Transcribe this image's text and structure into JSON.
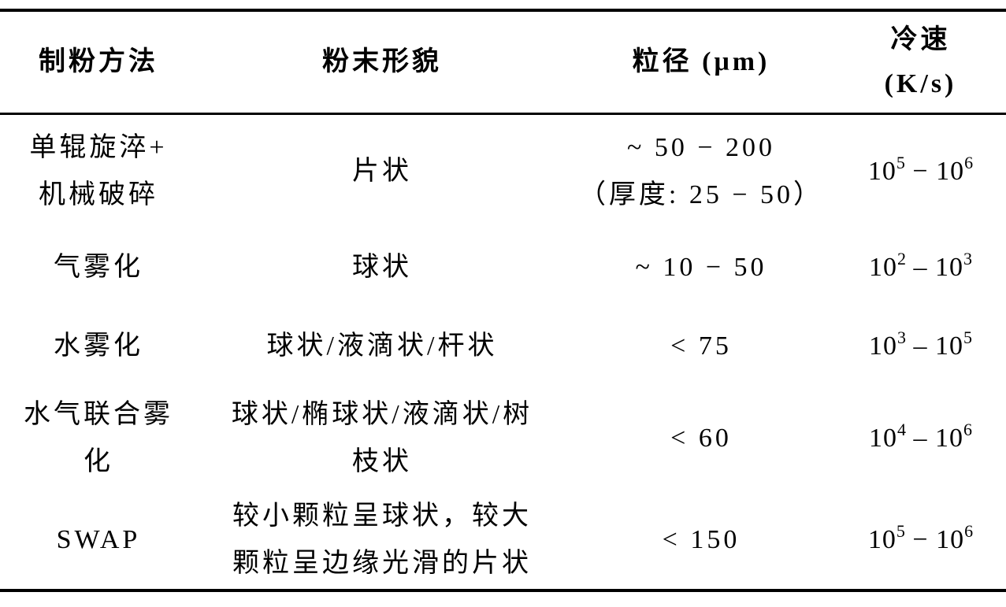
{
  "headers": [
    [
      "制粉方法"
    ],
    [
      "粉末形貌"
    ],
    [
      "粒径 (μm)"
    ],
    [
      "冷速",
      "(K/s)"
    ]
  ],
  "rows": [
    {
      "method": [
        "单辊旋淬+",
        "机械破碎"
      ],
      "morphology": [
        "片状"
      ],
      "size": [
        "~ 50 − 200",
        "（厚度: 25 − 50）"
      ],
      "rate": {
        "a": "10",
        "ae": "5",
        "sep": " − ",
        "b": "10",
        "be": "6"
      }
    },
    {
      "method": [
        "气雾化"
      ],
      "morphology": [
        "球状"
      ],
      "size": [
        "~ 10 − 50"
      ],
      "rate": {
        "a": "10",
        "ae": "2",
        "sep": " – ",
        "b": "10",
        "be": "3"
      }
    },
    {
      "method": [
        "水雾化"
      ],
      "morphology": [
        "球状/液滴状/杆状"
      ],
      "size": [
        "< 75"
      ],
      "rate": {
        "a": "10",
        "ae": "3",
        "sep": " – ",
        "b": "10",
        "be": "5"
      }
    },
    {
      "method": [
        "水气联合雾",
        "化"
      ],
      "morphology": [
        "球状/椭球状/液滴状/树",
        "枝状"
      ],
      "size": [
        "< 60"
      ],
      "rate": {
        "a": "10",
        "ae": "4",
        "sep": " – ",
        "b": "10",
        "be": "6"
      }
    },
    {
      "method": [
        "SWAP"
      ],
      "morphology": [
        "较小颗粒呈球状，较大",
        "颗粒呈边缘光滑的片状"
      ],
      "size": [
        "< 150"
      ],
      "rate": {
        "a": "10",
        "ae": "5",
        "sep": " − ",
        "b": "10",
        "be": "6"
      }
    }
  ]
}
